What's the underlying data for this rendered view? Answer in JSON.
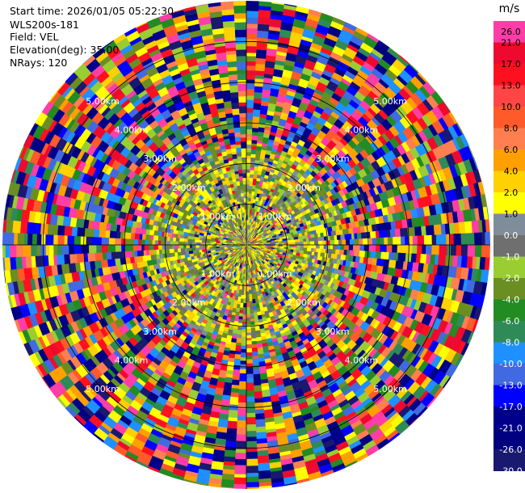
{
  "header": {
    "start_time": "Start time: 2026/01/05 05:22:30",
    "instrument": "WLS200s-181",
    "field": "Field: VEL",
    "elevation": "Elevation(deg): 35.00",
    "nrays": "NRays: 120"
  },
  "chart_data": {
    "type": "heatmap",
    "projection": "polar-ppi",
    "field": "VEL",
    "units": "m/s",
    "n_rays": 120,
    "ring_labels": [
      "1.00km",
      "2.00km",
      "3.00km",
      "4.00km",
      "5.00km"
    ],
    "ring_radii_km": [
      1,
      2,
      3,
      4,
      5
    ],
    "max_range_km": 6.0,
    "colorbar": {
      "label": "m/s",
      "ticks": [
        "26.0",
        "21.0",
        "17.0",
        "13.0",
        "10.0",
        "8.0",
        "6.0",
        "4.0",
        "2.0",
        "1.0",
        "0.0",
        "-1.0",
        "-2.0",
        "-4.0",
        "-6.0",
        "-8.0",
        "-10.0",
        "-13.0",
        "-17.0",
        "-21.0",
        "-26.0",
        "-30.0"
      ],
      "colors": [
        "#ff3da6",
        "#ee0a2e",
        "#ff1020",
        "#ff4545",
        "#ff5a2a",
        "#ff7f50",
        "#ffa000",
        "#ffd100",
        "#ffff00",
        "#7f8c99",
        "#6f6f6f",
        "#9acd32",
        "#6b8e23",
        "#228b22",
        "#2e8b57",
        "#1e90ff",
        "#4169e1",
        "#0000ff",
        "#00008b",
        "#000080",
        "#191970"
      ]
    }
  }
}
